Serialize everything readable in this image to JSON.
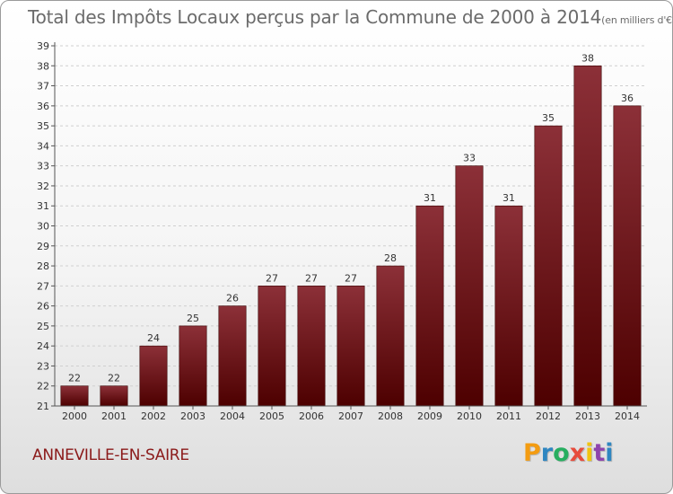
{
  "header": {
    "title": "Total des Impôts Locaux perçus par la Commune de 2000 à 2014",
    "unit": "(en milliers d'€)"
  },
  "commune": "ANNEVILLE-EN-SAIRE",
  "logo": {
    "letters": [
      "P",
      "r",
      "o",
      "x",
      "i",
      "t",
      "i"
    ],
    "colors": [
      "#f39c12",
      "#2e86c1",
      "#27ae60",
      "#e74c3c",
      "#f1c40f",
      "#8e44ad",
      "#2e86c1"
    ]
  },
  "colors": {
    "bar_top": "#8c3038",
    "bar_bottom": "#4d0000",
    "grid": "#cfcfcf",
    "axis": "#555555"
  },
  "chart_data": {
    "type": "bar",
    "title": "Total des Impôts Locaux perçus par la Commune de 2000 à 2014",
    "subtitle": "(en milliers d'€)",
    "categories": [
      "2000",
      "2001",
      "2002",
      "2003",
      "2004",
      "2005",
      "2006",
      "2007",
      "2008",
      "2009",
      "2010",
      "2011",
      "2012",
      "2013",
      "2014"
    ],
    "values": [
      22,
      22,
      24,
      25,
      26,
      27,
      27,
      27,
      28,
      31,
      33,
      31,
      35,
      38,
      36
    ],
    "ylim": [
      21,
      39
    ],
    "yticks": [
      21,
      22,
      23,
      24,
      25,
      26,
      27,
      28,
      29,
      30,
      31,
      32,
      33,
      34,
      35,
      36,
      37,
      38,
      39
    ],
    "grid": true,
    "legend": "none"
  }
}
